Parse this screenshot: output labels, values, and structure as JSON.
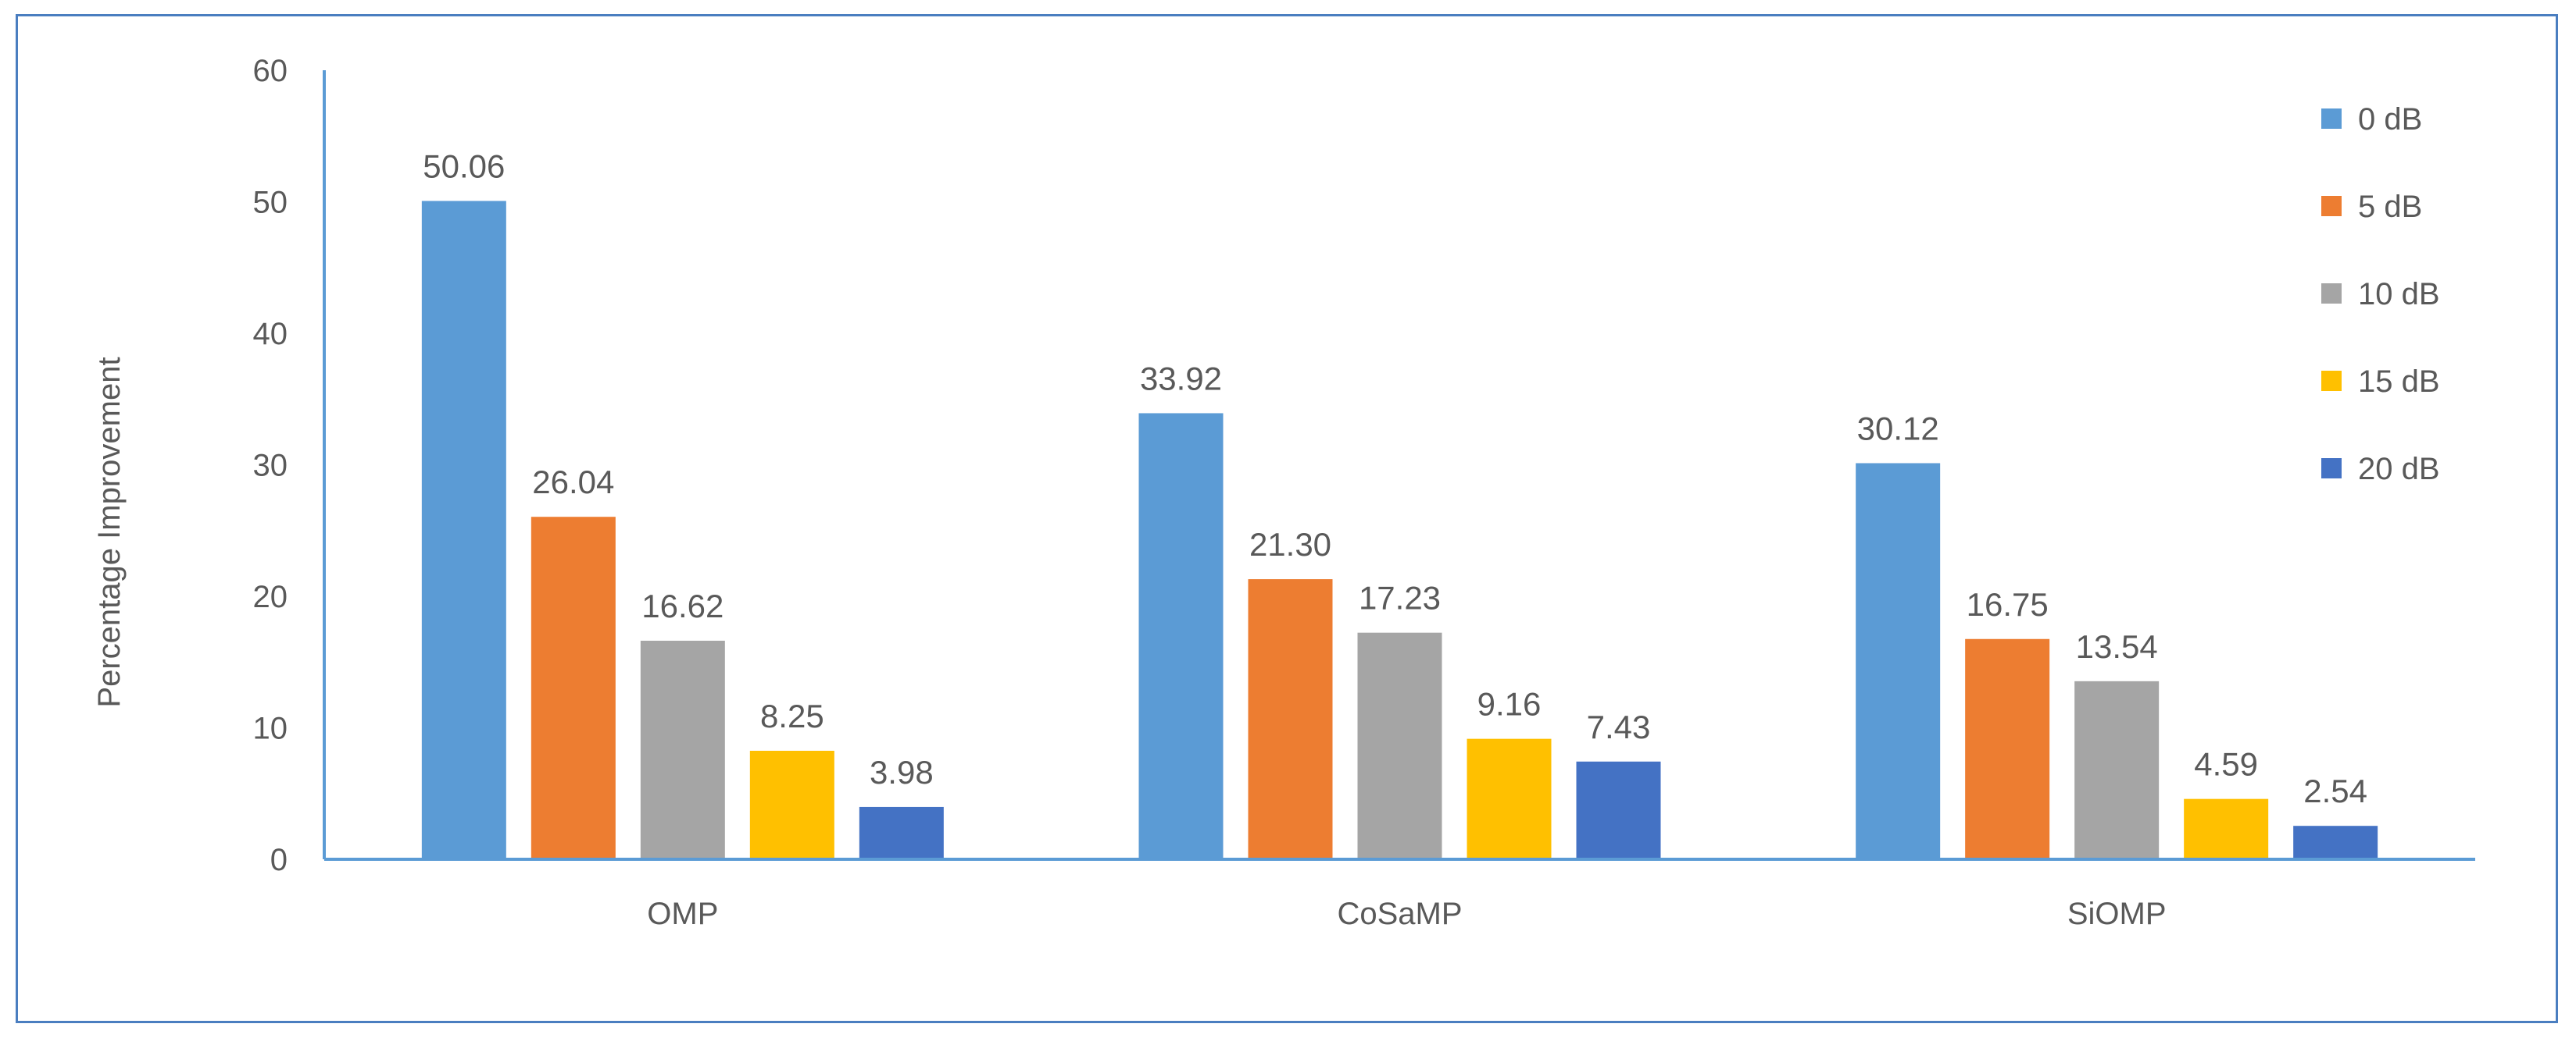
{
  "chart_data": {
    "type": "bar",
    "categories": [
      "OMP",
      "CoSaMP",
      "SiOMP"
    ],
    "series": [
      {
        "name": "0 dB",
        "values": [
          50.06,
          33.92,
          30.12
        ],
        "color": "#5b9bd5"
      },
      {
        "name": "5 dB",
        "values": [
          26.04,
          21.3,
          16.75
        ],
        "color": "#ed7d31"
      },
      {
        "name": "10 dB",
        "values": [
          16.62,
          17.23,
          13.54
        ],
        "color": "#a5a5a5"
      },
      {
        "name": "15 dB",
        "values": [
          8.25,
          9.16,
          4.59
        ],
        "color": "#ffc000"
      },
      {
        "name": "20 dB",
        "values": [
          3.98,
          7.43,
          2.54
        ],
        "color": "#4472c4"
      }
    ],
    "data_labels": [
      [
        "50.06",
        "33.92",
        "30.12"
      ],
      [
        "26.04",
        "21.30",
        "16.75"
      ],
      [
        "16.62",
        "17.23",
        "13.54"
      ],
      [
        "8.25",
        "9.16",
        "4.59"
      ],
      [
        "3.98",
        "7.43",
        "2.54"
      ]
    ],
    "title": "",
    "xlabel": "",
    "ylabel": "Percentage Improvement",
    "ylim": [
      0,
      60
    ],
    "yticks": [
      0,
      10,
      20,
      30,
      40,
      50,
      60
    ],
    "grid": false,
    "legend_position": "right",
    "axis_color": "#5b9bd5"
  }
}
